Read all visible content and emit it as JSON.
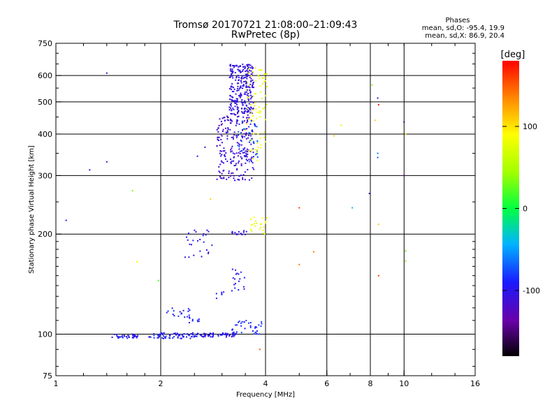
{
  "chart_data": {
    "type": "scatter",
    "title": "Tromsø 20170721 21:08:00–21:09:43",
    "subtitle": "RwPretec (8p)",
    "stats": {
      "title": "Phases",
      "line1": "mean, sd,O: -95.4, 19.9",
      "line2": "mean, sd,X:  86.9, 20.4"
    },
    "xlabel": "Frequency [MHz]",
    "ylabel": "Stationary phase Virtual Height [km]",
    "xscale": "log",
    "yscale": "log",
    "xlim": [
      1,
      16
    ],
    "ylim": [
      75,
      750
    ],
    "x_ticks": [
      1,
      2,
      4,
      6,
      8,
      10,
      16
    ],
    "x_tick_labels": [
      "1",
      "2",
      "4",
      "6",
      "8",
      "10",
      "16"
    ],
    "y_ticks": [
      75,
      100,
      200,
      300,
      400,
      500,
      600,
      750
    ],
    "y_tick_labels": [
      "75",
      "100",
      "200",
      "300",
      "400",
      "500",
      "600",
      "750"
    ],
    "grid_x": [
      2,
      4,
      6,
      8,
      10
    ],
    "grid_y": [
      100,
      200,
      300,
      400,
      500,
      600
    ],
    "colorbar": {
      "label": "[deg]",
      "range": [
        -180,
        180
      ],
      "ticks": [
        100,
        0,
        -100
      ],
      "tick_labels": [
        "100",
        "0",
        "-100"
      ]
    },
    "point_groups": [
      {
        "x_range": [
          1.45,
          1.72
        ],
        "y_range": [
          97,
          100
        ],
        "count": 35,
        "phase": [
          -110,
          -85
        ]
      },
      {
        "x_range": [
          1.85,
          2.45
        ],
        "y_range": [
          97,
          101
        ],
        "count": 60,
        "phase": [
          -105,
          -80
        ]
      },
      {
        "x_range": [
          2.45,
          3.3
        ],
        "y_range": [
          98,
          101
        ],
        "count": 70,
        "phase": [
          -110,
          -85
        ]
      },
      {
        "x_range": [
          3.2,
          3.9
        ],
        "y_range": [
          100,
          110
        ],
        "count": 35,
        "phase": [
          -100,
          -75
        ]
      },
      {
        "x_range": [
          2.05,
          2.45
        ],
        "y_range": [
          112,
          120
        ],
        "count": 18,
        "phase": [
          -110,
          -80
        ]
      },
      {
        "x_range": [
          2.4,
          2.6
        ],
        "y_range": [
          108,
          112
        ],
        "count": 8,
        "phase": [
          -100,
          -80
        ]
      },
      {
        "x_range": [
          2.85,
          3.05
        ],
        "y_range": [
          128,
          135
        ],
        "count": 6,
        "phase": [
          -110,
          -90
        ]
      },
      {
        "x_range": [
          3.2,
          3.5
        ],
        "y_range": [
          135,
          160
        ],
        "count": 18,
        "phase": [
          -105,
          -80
        ]
      },
      {
        "x_range": [
          2.35,
          2.9
        ],
        "y_range": [
          170,
          210
        ],
        "count": 25,
        "phase": [
          -115,
          -85
        ]
      },
      {
        "x_range": [
          3.2,
          3.55
        ],
        "y_range": [
          198,
          205
        ],
        "count": 15,
        "phase": [
          -120,
          -95
        ]
      },
      {
        "x_range": [
          3.6,
          4.05
        ],
        "y_range": [
          200,
          225
        ],
        "count": 22,
        "phase": [
          70,
          95
        ]
      },
      {
        "x_range": [
          2.9,
          3.7
        ],
        "y_range": [
          290,
          460
        ],
        "count": 220,
        "phase": [
          -125,
          -100
        ]
      },
      {
        "x_range": [
          3.15,
          3.7
        ],
        "y_range": [
          460,
          650
        ],
        "count": 260,
        "phase": [
          -115,
          -95
        ]
      },
      {
        "x_range": [
          3.3,
          3.8
        ],
        "y_range": [
          330,
          440
        ],
        "count": 45,
        "phase": [
          -90,
          -60
        ]
      },
      {
        "x_range": [
          3.5,
          4.05
        ],
        "y_range": [
          360,
          640
        ],
        "count": 70,
        "phase": [
          70,
          100
        ]
      },
      {
        "x_range": [
          3.55,
          3.8
        ],
        "y_range": [
          330,
          360
        ],
        "count": 8,
        "phase": [
          80,
          95
        ]
      }
    ],
    "scatter_points": [
      {
        "x": 1.07,
        "y": 220,
        "phase": -110
      },
      {
        "x": 1.25,
        "y": 312,
        "phase": -95
      },
      {
        "x": 1.4,
        "y": 610,
        "phase": -115
      },
      {
        "x": 1.4,
        "y": 330,
        "phase": -120
      },
      {
        "x": 1.66,
        "y": 270,
        "phase": 30
      },
      {
        "x": 1.71,
        "y": 165,
        "phase": 90
      },
      {
        "x": 1.97,
        "y": 145,
        "phase": 20
      },
      {
        "x": 2.55,
        "y": 343,
        "phase": -110
      },
      {
        "x": 2.68,
        "y": 365,
        "phase": -100
      },
      {
        "x": 2.78,
        "y": 255,
        "phase": 110
      },
      {
        "x": 3.85,
        "y": 90,
        "phase": 150
      },
      {
        "x": 5.0,
        "y": 240,
        "phase": 160
      },
      {
        "x": 5.0,
        "y": 162,
        "phase": 140
      },
      {
        "x": 5.5,
        "y": 177,
        "phase": 140
      },
      {
        "x": 6.3,
        "y": 395,
        "phase": 110
      },
      {
        "x": 6.6,
        "y": 425,
        "phase": 100
      },
      {
        "x": 7.1,
        "y": 240,
        "phase": -40
      },
      {
        "x": 7.95,
        "y": 265,
        "phase": -120
      },
      {
        "x": 8.1,
        "y": 562,
        "phase": 40
      },
      {
        "x": 8.25,
        "y": 440,
        "phase": 110
      },
      {
        "x": 8.4,
        "y": 513,
        "phase": -110
      },
      {
        "x": 8.45,
        "y": 490,
        "phase": 170
      },
      {
        "x": 8.4,
        "y": 350,
        "phase": -60
      },
      {
        "x": 8.4,
        "y": 340,
        "phase": -70
      },
      {
        "x": 8.45,
        "y": 214,
        "phase": 110
      },
      {
        "x": 8.45,
        "y": 150,
        "phase": 160
      },
      {
        "x": 10.0,
        "y": 435,
        "phase": -150
      },
      {
        "x": 10.0,
        "y": 300,
        "phase": -140
      },
      {
        "x": 10.1,
        "y": 400,
        "phase": 100
      },
      {
        "x": 10.1,
        "y": 178,
        "phase": 30
      },
      {
        "x": 10.1,
        "y": 166,
        "phase": 40
      }
    ]
  }
}
